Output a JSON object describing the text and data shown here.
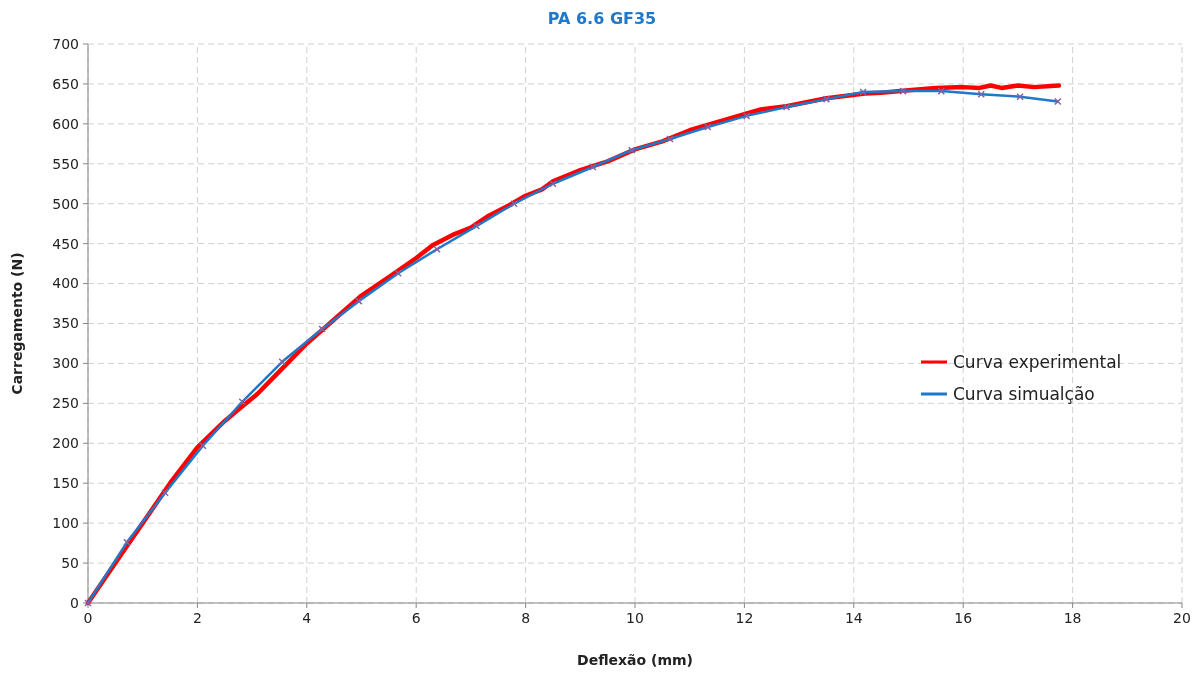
{
  "chart_data": {
    "type": "line",
    "title": "PA 6.6 GF35",
    "xlabel": "Deflexão (mm)",
    "ylabel": "Carregamento (N)",
    "xlim": [
      0,
      20
    ],
    "xticks": [
      0,
      2,
      4,
      6,
      8,
      10,
      12,
      14,
      16,
      18,
      20
    ],
    "ylim": [
      0,
      700
    ],
    "yticks": [
      0,
      50,
      100,
      150,
      200,
      250,
      300,
      350,
      400,
      450,
      500,
      550,
      600,
      650,
      700
    ],
    "grid": true,
    "legend": "right",
    "series": [
      {
        "name": "Curva experimental",
        "color": "#ff0000",
        "marker": "none",
        "x": [
          0,
          0.6,
          1,
          1.5,
          2,
          2.5,
          2.8,
          3.1,
          3.5,
          4,
          4.5,
          5,
          5.5,
          6,
          6.3,
          6.7,
          7,
          7.3,
          7.7,
          8,
          8.3,
          8.5,
          9,
          9.5,
          10,
          10.5,
          11,
          11.5,
          12,
          12.3,
          12.77,
          13.5,
          14.2,
          14.5,
          15,
          15.5,
          16,
          16.3,
          16.5,
          16.7,
          17,
          17.3,
          17.75
        ],
        "values": [
          0,
          60,
          100,
          150,
          195,
          228,
          245,
          262,
          290,
          325,
          355,
          385,
          408,
          432,
          448,
          462,
          470,
          484,
          498,
          510,
          518,
          528,
          542,
          553,
          568,
          578,
          592,
          602,
          612,
          618,
          622,
          632,
          638,
          639,
          642,
          645,
          646,
          645,
          648,
          645,
          648,
          646,
          648
        ]
      },
      {
        "name": "Curva simualção",
        "color": "#1f78c8",
        "marker": "cross",
        "x": [
          0,
          0.71,
          1.41,
          2.1,
          2.82,
          3.55,
          4.28,
          4.95,
          5.67,
          6.38,
          7.1,
          7.79,
          8.5,
          9.23,
          9.94,
          10.64,
          11.33,
          12.04,
          12.77,
          13.5,
          14.17,
          14.9,
          15.6,
          16.33,
          17.04,
          17.73
        ],
        "values": [
          0,
          76,
          138,
          197,
          252,
          302,
          343,
          378,
          413,
          443,
          472,
          500,
          525,
          546,
          567,
          581,
          596,
          610,
          621,
          631,
          640,
          641,
          641,
          637,
          634,
          628
        ]
      }
    ]
  }
}
